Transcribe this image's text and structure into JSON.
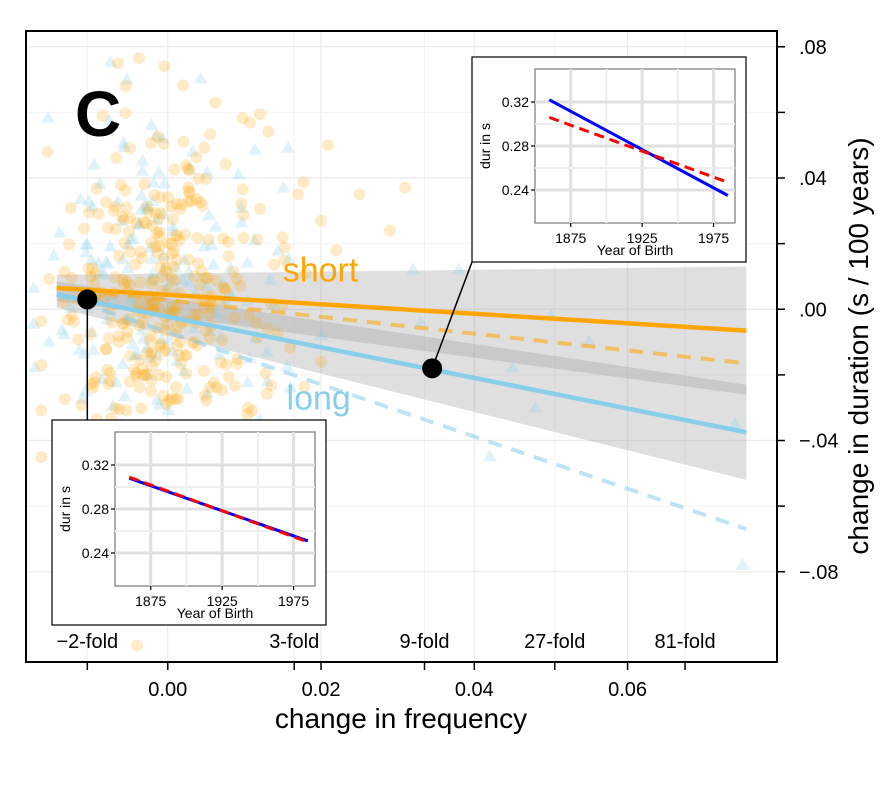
{
  "chart_data": {
    "type": "scatter",
    "panel_label": "C",
    "xlabel": "change in frequency",
    "ylabel": "change in duration (s / 100 years)",
    "xlim": [
      -0.0185,
      0.0795
    ],
    "ylim": [
      -0.1075,
      0.0848
    ],
    "x_ticks": [
      0.0,
      0.02,
      0.04,
      0.06
    ],
    "x_tick_labels": [
      "0.00",
      "0.02",
      "0.04",
      "0.06"
    ],
    "y_ticks": [
      0.08,
      0.04,
      0.0,
      -0.04,
      -0.08
    ],
    "y_tick_labels": [
      ".08",
      ".04",
      ".00",
      "−.04",
      "−.08"
    ],
    "y_axis_side": "right",
    "grid": true,
    "fold_markers": [
      {
        "label": "−2-fold",
        "x": -0.0105
      },
      {
        "label": "3-fold",
        "x": 0.0165
      },
      {
        "label": "9-fold",
        "x": 0.0335
      },
      {
        "label": "27-fold",
        "x": 0.0505
      },
      {
        "label": "81-fold",
        "x": 0.0675
      }
    ],
    "series": [
      {
        "name": "short",
        "color": "#FFA500",
        "marker": "circle",
        "solid_fit": {
          "x": [
            -0.0145,
            0.0755
          ],
          "y": [
            0.0065,
            -0.0065
          ]
        },
        "dashed_fit": {
          "x": [
            -0.0145,
            0.0755
          ],
          "y": [
            0.0065,
            -0.0165
          ]
        },
        "ci_band": {
          "x": [
            -0.0145,
            0.0755
          ],
          "upper": [
            0.0105,
            0.013
          ],
          "lower": [
            0.0025,
            -0.026
          ]
        }
      },
      {
        "name": "long",
        "color": "#87CEEB",
        "marker": "triangle",
        "solid_fit": {
          "x": [
            -0.0145,
            0.0755
          ],
          "y": [
            0.0045,
            -0.0375
          ]
        },
        "dashed_fit": {
          "x": [
            -0.0145,
            0.0755
          ],
          "y": [
            0.0045,
            -0.067
          ]
        },
        "ci_band": {
          "x": [
            -0.0145,
            0.0755
          ],
          "upper": [
            0.0085,
            -0.023
          ],
          "lower": [
            0.0005,
            -0.052
          ]
        }
      }
    ],
    "highlighted_points": [
      {
        "x": -0.0105,
        "y": 0.003,
        "inset": "bottom-left"
      },
      {
        "x": 0.0345,
        "y": -0.018,
        "inset": "top-right"
      }
    ],
    "insets": [
      {
        "id": "top-right",
        "xlabel": "Year of Birth",
        "ylabel": "dur in s",
        "xlim": [
          1850,
          1990
        ],
        "ylim": [
          0.21,
          0.35
        ],
        "x_ticks": [
          1875,
          1925,
          1975
        ],
        "x_tick_labels": [
          "1875",
          "1925",
          "1975"
        ],
        "y_ticks": [
          0.24,
          0.28,
          0.32
        ],
        "y_tick_labels": [
          "0.24",
          "0.28",
          "0.32"
        ],
        "lines": [
          {
            "style": "solid",
            "color": "#0000FF",
            "x": [
              1860,
              1985
            ],
            "y": [
              0.322,
              0.235
            ]
          },
          {
            "style": "dashed",
            "color": "#FF0000",
            "x": [
              1860,
              1985
            ],
            "y": [
              0.306,
              0.247
            ]
          }
        ]
      },
      {
        "id": "bottom-left",
        "xlabel": "Year of Birth",
        "ylabel": "dur in s",
        "xlim": [
          1850,
          1990
        ],
        "ylim": [
          0.21,
          0.35
        ],
        "x_ticks": [
          1875,
          1925,
          1975
        ],
        "x_tick_labels": [
          "1875",
          "1925",
          "1975"
        ],
        "y_ticks": [
          0.24,
          0.28,
          0.32
        ],
        "y_tick_labels": [
          "0.24",
          "0.28",
          "0.32"
        ],
        "lines": [
          {
            "style": "solid",
            "color": "#0000FF",
            "x": [
              1860,
              1985
            ],
            "y": [
              0.308,
              0.251
            ]
          },
          {
            "style": "dashed",
            "color": "#FF0000",
            "x": [
              1860,
              1985
            ],
            "y": [
              0.309,
              0.25
            ]
          }
        ]
      }
    ],
    "scatter_cloud": {
      "short": {
        "center": [
          0.0,
          0.0
        ],
        "spread": [
          0.0075,
          0.03
        ],
        "count": 340,
        "outliers": [
          [
            -0.0065,
            0.075
          ],
          [
            -0.0055,
            0.068
          ],
          [
            -0.0085,
            0.059
          ],
          [
            0.015,
            0.022
          ],
          [
            0.02,
            0.027
          ],
          [
            0.022,
            0.018
          ],
          [
            0.025,
            0.035
          ],
          [
            0.018,
            0.011
          ],
          [
            0.031,
            0.037
          ],
          [
            0.029,
            0.024
          ],
          [
            0.013,
            -0.006
          ],
          [
            0.02,
            -0.016
          ],
          [
            -0.004,
            -0.1025
          ],
          [
            0.017,
            0.035
          ]
        ]
      },
      "long": {
        "center": [
          -0.001,
          0.004
        ],
        "spread": [
          0.008,
          0.028
        ],
        "count": 160,
        "outliers": [
          [
            0.032,
            0.012
          ],
          [
            0.033,
            -0.004
          ],
          [
            0.038,
            0.012
          ],
          [
            0.045,
            -0.018
          ],
          [
            0.048,
            -0.03
          ],
          [
            0.05,
            -0.002
          ],
          [
            0.042,
            -0.045
          ],
          [
            0.074,
            -0.035
          ],
          [
            0.075,
            -0.078
          ],
          [
            0.055,
            -0.01
          ],
          [
            0.02,
            -0.008
          ],
          [
            -0.0155,
            -0.01
          ],
          [
            0.012,
            -0.034
          ]
        ]
      }
    }
  }
}
